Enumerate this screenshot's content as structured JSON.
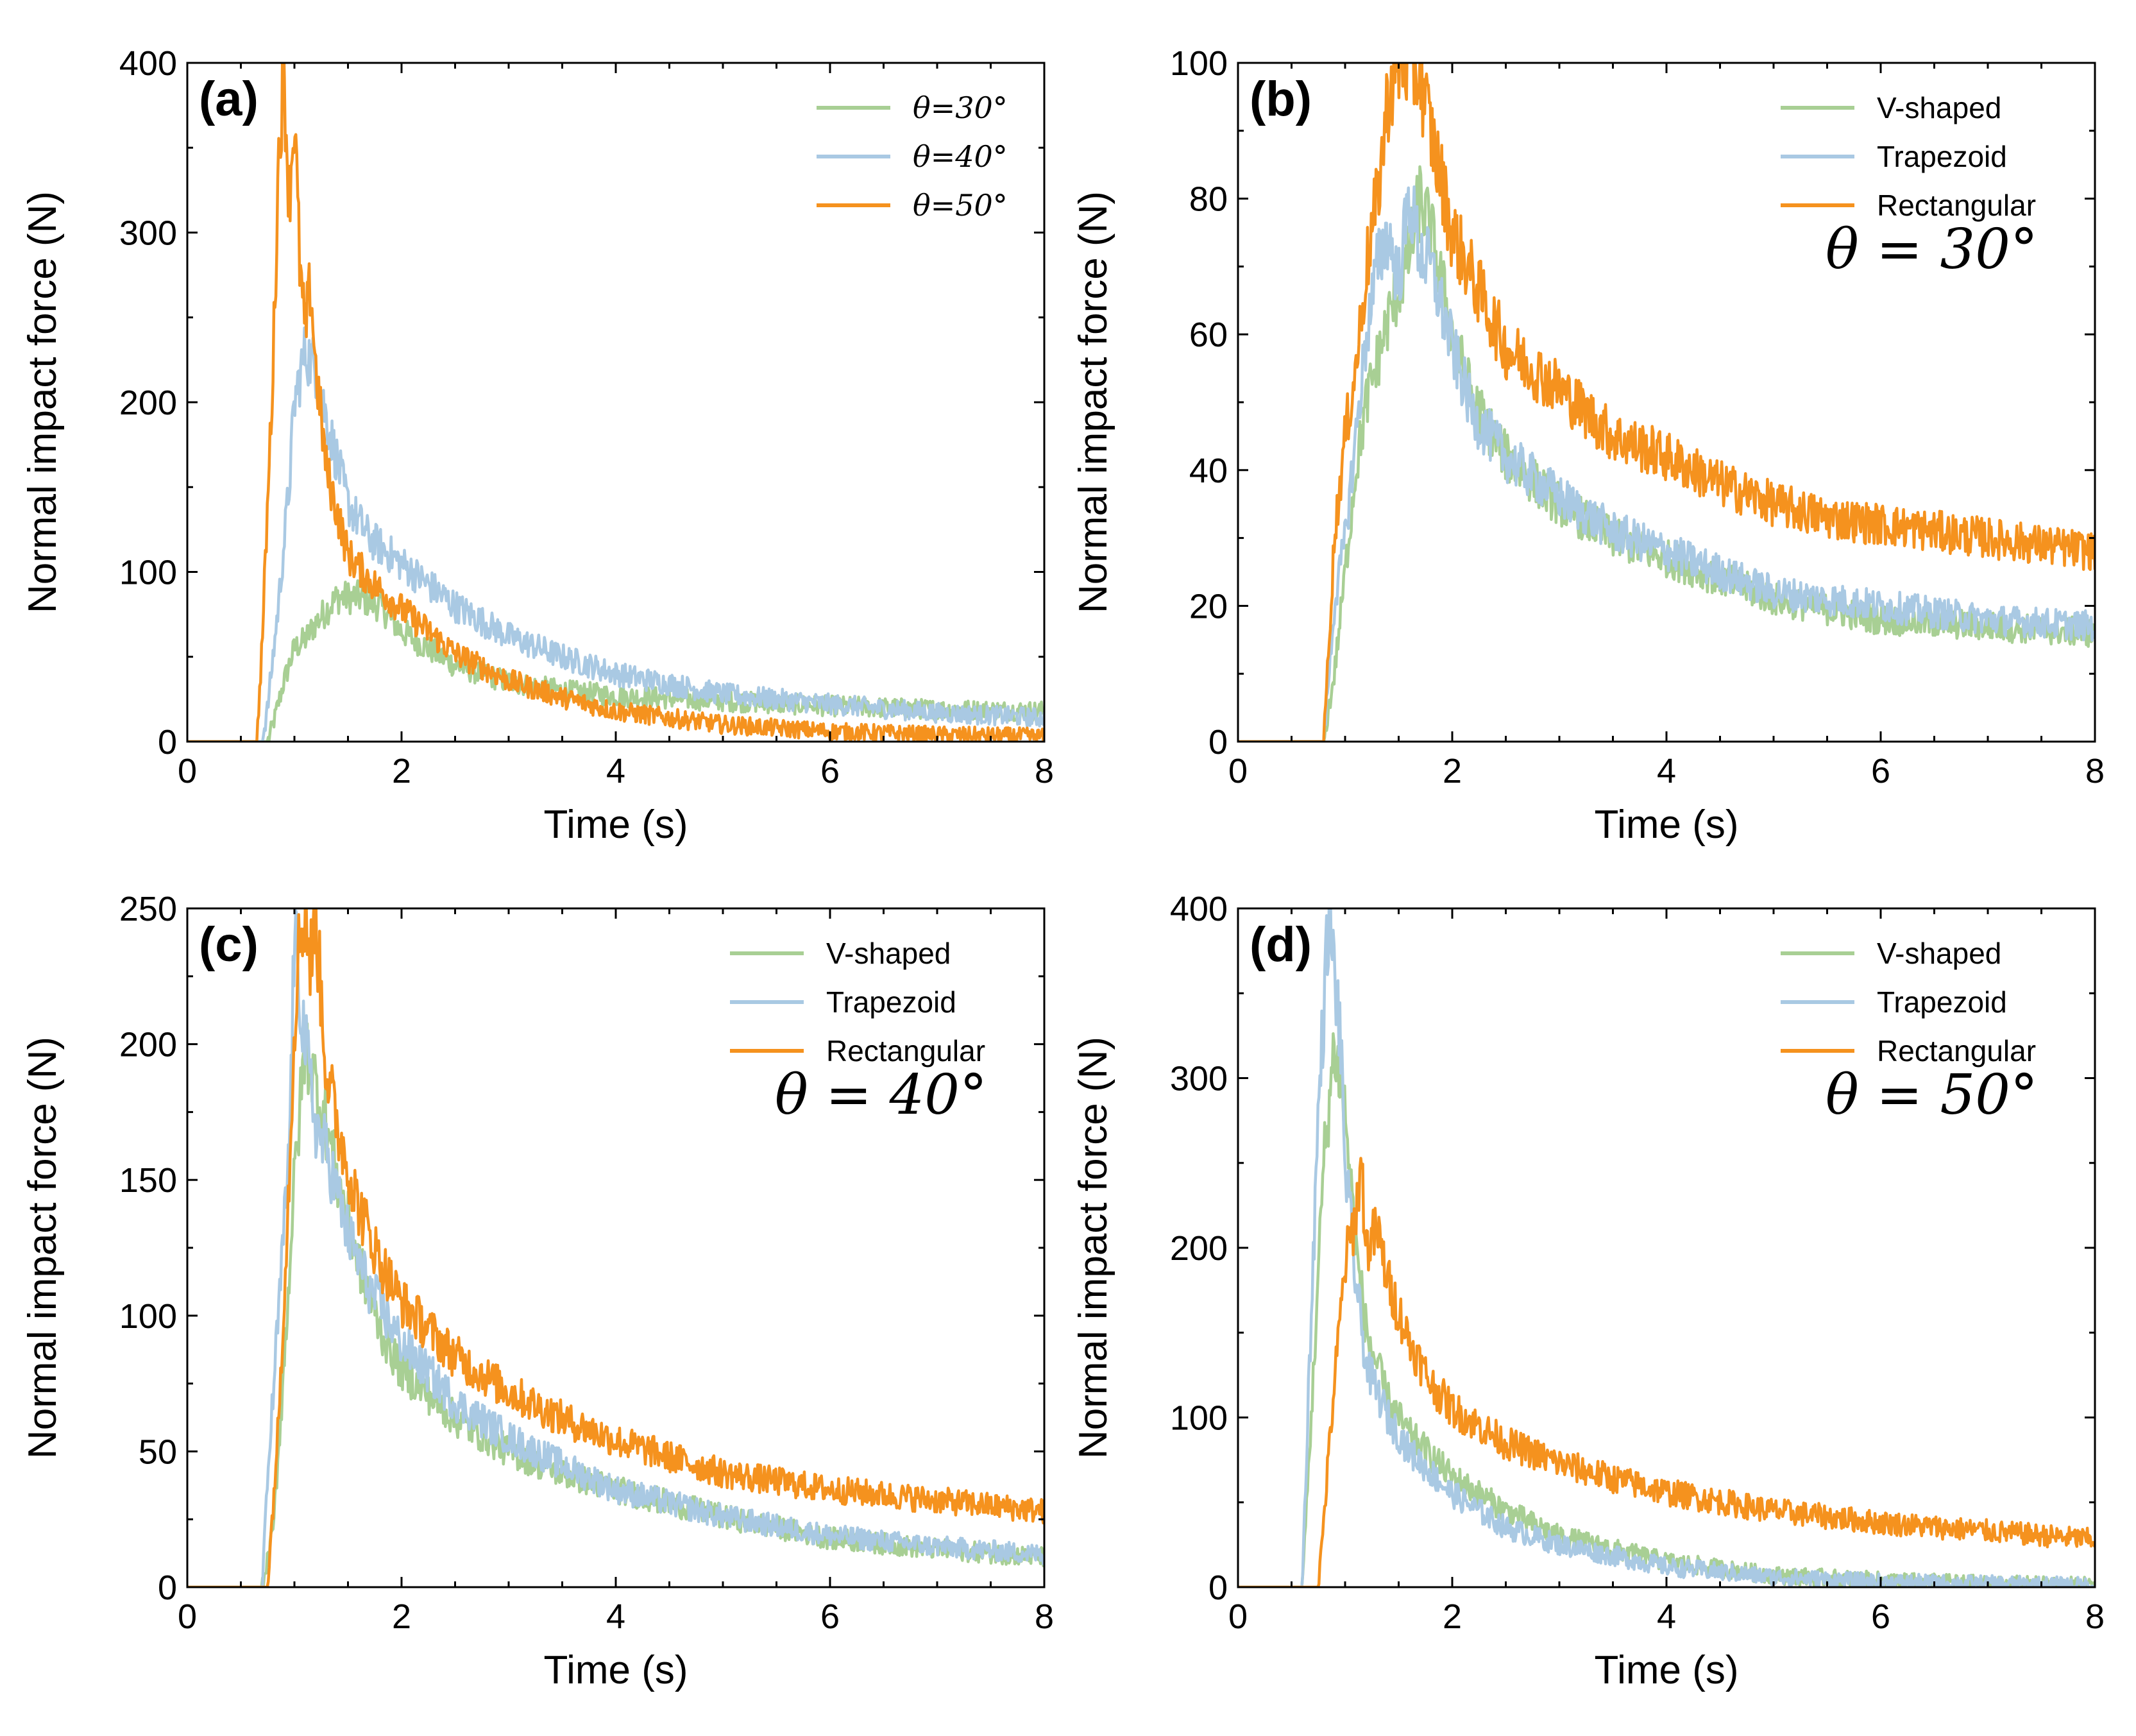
{
  "figure": {
    "colors": {
      "green": "#a8cf94",
      "blue": "#a9c9e3",
      "orange": "#f5921e"
    }
  },
  "chart_data": [
    {
      "type": "line",
      "panel": "(a)",
      "xlabel": "Time (s)",
      "ylabel": "Normal impact force (N)",
      "xlim": [
        0,
        8
      ],
      "ylim": [
        0,
        400
      ],
      "xticks": [
        "0",
        "2",
        "4",
        "6",
        "8"
      ],
      "yticks": [
        "0",
        "100",
        "200",
        "300",
        "400"
      ],
      "legend": [
        "θ=30°",
        "θ=40°",
        "θ=50°"
      ],
      "legend_position": "top-right",
      "series": [
        {
          "name": "θ=30°",
          "color": "green",
          "x": [
            0,
            0.75,
            0.8,
            0.9,
            1.0,
            1.1,
            1.2,
            1.4,
            1.6,
            1.8,
            2.0,
            2.5,
            3.0,
            3.5,
            4.0,
            5.0,
            6.0,
            7.0,
            8.0
          ],
          "y": [
            0,
            0,
            10,
            35,
            55,
            60,
            70,
            85,
            85,
            80,
            65,
            45,
            35,
            30,
            27,
            24,
            21,
            19,
            18
          ]
        },
        {
          "name": "θ=40°",
          "color": "blue",
          "x": [
            0,
            0.7,
            0.75,
            0.85,
            0.95,
            1.0,
            1.1,
            1.2,
            1.3,
            1.5,
            1.7,
            2.0,
            2.5,
            3.0,
            3.5,
            4.0,
            5.0,
            6.0,
            7.0,
            8.0
          ],
          "y": [
            0,
            0,
            20,
            80,
            150,
            200,
            230,
            220,
            190,
            140,
            120,
            105,
            80,
            62,
            50,
            40,
            28,
            22,
            17,
            14
          ]
        },
        {
          "name": "θ=50°",
          "color": "orange",
          "x": [
            0,
            0.65,
            0.7,
            0.8,
            0.85,
            0.9,
            0.95,
            1.0,
            1.05,
            1.1,
            1.15,
            1.2,
            1.3,
            1.5,
            1.7,
            2.0,
            2.5,
            3.0,
            3.5,
            4.0,
            5.0,
            6.0,
            7.0,
            8.0
          ],
          "y": [
            0,
            0,
            60,
            220,
            340,
            400,
            320,
            370,
            280,
            240,
            270,
            220,
            160,
            110,
            95,
            78,
            52,
            36,
            26,
            18,
            10,
            6,
            4,
            3
          ]
        }
      ]
    },
    {
      "type": "line",
      "panel": "(b)",
      "xlabel": "Time (s)",
      "ylabel": "Normal impact force (N)",
      "xlim": [
        0,
        8
      ],
      "ylim": [
        0,
        100
      ],
      "xticks": [
        "0",
        "2",
        "4",
        "6",
        "8"
      ],
      "yticks": [
        "0",
        "20",
        "40",
        "60",
        "80",
        "100"
      ],
      "legend": [
        "V-shaped",
        "Trapezoid",
        "Rectangular"
      ],
      "legend_position": "top-right",
      "annotation": "θ = 30°",
      "series": [
        {
          "name": "V-shaped",
          "color": "green",
          "x": [
            0,
            0.8,
            0.9,
            1.0,
            1.1,
            1.2,
            1.4,
            1.6,
            1.7,
            1.8,
            2.0,
            2.2,
            2.5,
            3.0,
            3.5,
            4.0,
            4.5,
            5.0,
            6.0,
            7.0,
            8.0
          ],
          "y": [
            0,
            0,
            10,
            25,
            40,
            50,
            62,
            72,
            80,
            75,
            60,
            50,
            42,
            35,
            30,
            27,
            24,
            21,
            18,
            17,
            16
          ]
        },
        {
          "name": "Trapezoid",
          "color": "blue",
          "x": [
            0,
            0.8,
            0.9,
            1.0,
            1.1,
            1.2,
            1.3,
            1.4,
            1.5,
            1.6,
            1.7,
            1.8,
            2.0,
            2.2,
            2.5,
            3.0,
            3.5,
            4.0,
            4.5,
            5.0,
            6.0,
            7.0,
            8.0
          ],
          "y": [
            0,
            0,
            20,
            30,
            45,
            60,
            70,
            75,
            68,
            80,
            72,
            70,
            58,
            48,
            42,
            36,
            31,
            28,
            25,
            22,
            20,
            18,
            17
          ]
        },
        {
          "name": "Rectangular",
          "color": "orange",
          "x": [
            0,
            0.8,
            0.85,
            0.9,
            1.0,
            1.1,
            1.2,
            1.3,
            1.4,
            1.5,
            1.6,
            1.7,
            1.8,
            2.0,
            2.2,
            2.5,
            3.0,
            3.5,
            4.0,
            4.5,
            5.0,
            5.5,
            6.0,
            7.0,
            8.0
          ],
          "y": [
            0,
            0,
            15,
            30,
            45,
            55,
            70,
            80,
            95,
            100,
            100,
            98,
            90,
            75,
            68,
            58,
            52,
            45,
            42,
            38,
            35,
            33,
            32,
            30,
            28
          ]
        }
      ]
    },
    {
      "type": "line",
      "panel": "(c)",
      "xlabel": "Time (s)",
      "ylabel": "Normal impact force (N)",
      "xlim": [
        0,
        8
      ],
      "ylim": [
        0,
        250
      ],
      "xticks": [
        "0",
        "2",
        "4",
        "6",
        "8"
      ],
      "yticks": [
        "0",
        "50",
        "100",
        "150",
        "200",
        "250"
      ],
      "legend": [
        "V-shaped",
        "Trapezoid",
        "Rectangular"
      ],
      "legend_position": "top-right",
      "annotation": "θ = 40°",
      "series": [
        {
          "name": "V-shaped",
          "color": "green",
          "x": [
            0,
            0.7,
            0.8,
            0.9,
            1.0,
            1.1,
            1.2,
            1.3,
            1.4,
            1.6,
            1.8,
            2.0,
            2.5,
            3.0,
            3.5,
            4.0,
            5.0,
            6.0,
            7.0,
            8.0
          ],
          "y": [
            0,
            0,
            20,
            80,
            150,
            200,
            185,
            170,
            150,
            120,
            95,
            80,
            62,
            50,
            42,
            36,
            26,
            18,
            14,
            11
          ]
        },
        {
          "name": "Trapezoid",
          "color": "blue",
          "x": [
            0,
            0.7,
            0.75,
            0.85,
            0.95,
            1.0,
            1.1,
            1.2,
            1.3,
            1.5,
            1.7,
            2.0,
            2.5,
            3.0,
            3.5,
            4.0,
            5.0,
            6.0,
            7.0,
            8.0
          ],
          "y": [
            0,
            0,
            40,
            100,
            160,
            240,
            200,
            170,
            160,
            130,
            110,
            90,
            68,
            55,
            45,
            36,
            26,
            19,
            15,
            12
          ]
        },
        {
          "name": "Rectangular",
          "color": "orange",
          "x": [
            0,
            0.75,
            0.85,
            0.95,
            1.0,
            1.05,
            1.1,
            1.15,
            1.2,
            1.3,
            1.4,
            1.6,
            1.8,
            2.0,
            2.5,
            3.0,
            3.5,
            4.0,
            4.5,
            5.0,
            6.0,
            7.0,
            8.0
          ],
          "y": [
            0,
            0,
            60,
            150,
            210,
            240,
            250,
            230,
            245,
            190,
            170,
            140,
            120,
            105,
            85,
            72,
            62,
            54,
            48,
            42,
            36,
            32,
            28
          ]
        }
      ]
    },
    {
      "type": "line",
      "panel": "(d)",
      "xlabel": "Time (s)",
      "ylabel": "Normal impact force (N)",
      "xlim": [
        0,
        8
      ],
      "ylim": [
        0,
        400
      ],
      "xticks": [
        "0",
        "2",
        "4",
        "6",
        "8"
      ],
      "yticks": [
        "0",
        "100",
        "200",
        "300",
        "400"
      ],
      "legend": [
        "V-shaped",
        "Trapezoid",
        "Rectangular"
      ],
      "legend_position": "top-right",
      "annotation": "θ = 50°",
      "series": [
        {
          "name": "V-shaped",
          "color": "green",
          "x": [
            0,
            0.6,
            0.7,
            0.8,
            0.9,
            1.0,
            1.1,
            1.2,
            1.4,
            1.6,
            2.0,
            2.5,
            3.0,
            4.0,
            5.0,
            6.0,
            7.0,
            8.0
          ],
          "y": [
            0,
            0,
            120,
            250,
            320,
            280,
            200,
            150,
            110,
            90,
            65,
            45,
            30,
            15,
            7,
            4,
            2,
            1
          ]
        },
        {
          "name": "Trapezoid",
          "color": "blue",
          "x": [
            0,
            0.6,
            0.65,
            0.75,
            0.85,
            0.9,
            0.95,
            1.0,
            1.1,
            1.2,
            1.4,
            1.6,
            2.0,
            2.5,
            3.0,
            4.0,
            5.0,
            6.0,
            7.0,
            8.0
          ],
          "y": [
            0,
            0,
            100,
            280,
            400,
            360,
            330,
            250,
            180,
            130,
            100,
            80,
            55,
            35,
            25,
            12,
            6,
            3,
            2,
            1
          ]
        },
        {
          "name": "Rectangular",
          "color": "orange",
          "x": [
            0,
            0.75,
            0.8,
            0.9,
            1.0,
            1.1,
            1.15,
            1.2,
            1.3,
            1.4,
            1.6,
            1.8,
            2.0,
            2.5,
            3.0,
            3.5,
            4.0,
            5.0,
            6.0,
            7.0,
            8.0
          ],
          "y": [
            0,
            0,
            40,
            120,
            190,
            220,
            250,
            200,
            210,
            180,
            145,
            120,
            105,
            85,
            73,
            64,
            56,
            45,
            38,
            33,
            28
          ]
        }
      ]
    }
  ]
}
